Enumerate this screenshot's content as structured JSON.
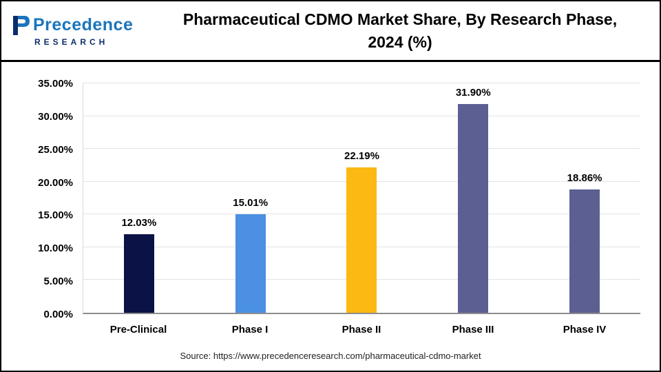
{
  "header": {
    "logo": {
      "line1": "Precedence",
      "line2": "RESEARCH",
      "accent_color": "#1b75bb",
      "dark_color": "#0d2d6b"
    },
    "title_line1": "Pharmaceutical CDMO Market Share, By Research Phase,",
    "title_line2": "2024 (%)"
  },
  "chart_data": {
    "type": "bar",
    "title": "Pharmaceutical CDMO Market Share, By Research Phase, 2024 (%)",
    "categories": [
      "Pre-Clinical",
      "Phase I",
      "Phase II",
      "Phase III",
      "Phase IV"
    ],
    "values": [
      12.03,
      15.01,
      22.19,
      31.9,
      18.86
    ],
    "value_labels": [
      "12.03%",
      "15.01%",
      "22.19%",
      "31.90%",
      "18.86%"
    ],
    "bar_colors": [
      "#0b1246",
      "#4b90e2",
      "#fcb813",
      "#5c5f92",
      "#5c5f92"
    ],
    "xlabel": "",
    "ylabel": "",
    "ylim": [
      0,
      35
    ],
    "yticks": [
      "0.00%",
      "5.00%",
      "10.00%",
      "15.00%",
      "20.00%",
      "25.00%",
      "30.00%",
      "35.00%"
    ],
    "grid": true,
    "legend": "none"
  },
  "footer": {
    "source": "Source: https://www.precedenceresearch.com/pharmaceutical-cdmo-market"
  }
}
